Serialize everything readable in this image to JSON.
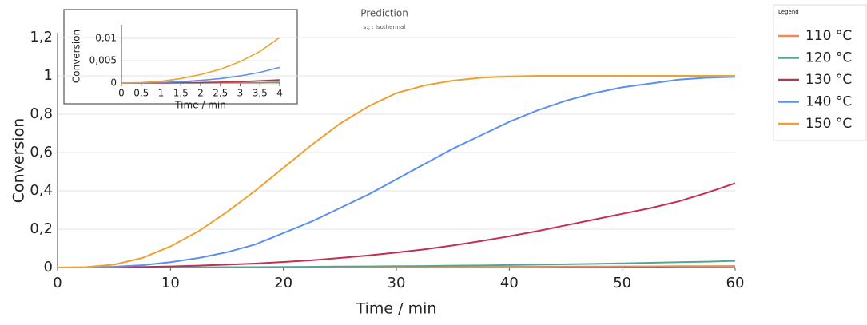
{
  "chart_data": [
    {
      "type": "line",
      "title": "Prediction",
      "subtitle": "s:; : Isothermal",
      "legend_title": "Legend",
      "xlabel": "Time / min",
      "ylabel": "Conversion",
      "x": [
        0,
        2.5,
        5,
        7.5,
        10,
        12.5,
        15,
        17.5,
        20,
        22.5,
        25,
        27.5,
        30,
        32.5,
        35,
        37.5,
        40,
        42.5,
        45,
        47.5,
        50,
        52.5,
        55,
        57.5,
        60
      ],
      "series": [
        {
          "name": "110 °C",
          "color": "#f08a55",
          "values": [
            0,
            0,
            0,
            0,
            0,
            0,
            0.001,
            0.001,
            0.001,
            0.001,
            0.002,
            0.002,
            0.002,
            0.003,
            0.003,
            0.003,
            0.004,
            0.004,
            0.005,
            0.005,
            0.006,
            0.006,
            0.007,
            0.007,
            0.008
          ]
        },
        {
          "name": "120 °C",
          "color": "#4fa897",
          "values": [
            0,
            0,
            0,
            0,
            0.001,
            0.001,
            0.002,
            0.002,
            0.003,
            0.004,
            0.005,
            0.006,
            0.007,
            0.008,
            0.01,
            0.011,
            0.013,
            0.015,
            0.017,
            0.019,
            0.022,
            0.025,
            0.028,
            0.031,
            0.035
          ]
        },
        {
          "name": "130 °C",
          "color": "#c2304f",
          "values": [
            0,
            0,
            0.001,
            0.003,
            0.006,
            0.01,
            0.015,
            0.021,
            0.029,
            0.038,
            0.05,
            0.063,
            0.078,
            0.095,
            0.115,
            0.138,
            0.163,
            0.19,
            0.22,
            0.25,
            0.28,
            0.31,
            0.345,
            0.39,
            0.44
          ]
        },
        {
          "name": "140 °C",
          "color": "#5b8ff0",
          "values": [
            0,
            0.001,
            0.004,
            0.012,
            0.028,
            0.05,
            0.08,
            0.12,
            0.18,
            0.24,
            0.31,
            0.38,
            0.46,
            0.54,
            0.62,
            0.69,
            0.76,
            0.82,
            0.87,
            0.91,
            0.94,
            0.96,
            0.98,
            0.99,
            0.995
          ]
        },
        {
          "name": "150 °C",
          "color": "#f0a030",
          "values": [
            0,
            0.002,
            0.015,
            0.05,
            0.11,
            0.19,
            0.29,
            0.4,
            0.52,
            0.64,
            0.75,
            0.84,
            0.91,
            0.95,
            0.975,
            0.99,
            0.997,
            1,
            1,
            1,
            1,
            1,
            1,
            1,
            1
          ]
        }
      ],
      "xlim": [
        0,
        60
      ],
      "xticks": [
        0,
        10,
        20,
        30,
        40,
        50,
        60
      ],
      "ylim": [
        0,
        1.2
      ],
      "yticks": [
        0,
        {
          "value": 0.2,
          "label": "0,2"
        },
        {
          "value": 0.4,
          "label": "0,4"
        },
        {
          "value": 0.6,
          "label": "0,6"
        },
        {
          "value": 0.8,
          "label": "0,8"
        },
        1,
        {
          "value": 1.2,
          "label": "1,2"
        }
      ],
      "grid": true
    },
    {
      "type": "line",
      "xlabel": "Time / min",
      "ylabel": "Conversion",
      "x": [
        0,
        0.5,
        1,
        1.5,
        2,
        2.5,
        3,
        3.5,
        4
      ],
      "series": [
        {
          "color": "#f08a55",
          "values": [
            0,
            0,
            0,
            0,
            0,
            0,
            0,
            0,
            0.0001
          ]
        },
        {
          "color": "#4fa897",
          "values": [
            0,
            0,
            0,
            0,
            0,
            0.0001,
            0.0001,
            0.0001,
            0.0002
          ]
        },
        {
          "color": "#c2304f",
          "values": [
            0,
            0,
            0,
            0.0001,
            0.0001,
            0.0002,
            0.0003,
            0.0005,
            0.0007
          ]
        },
        {
          "color": "#5b8ff0",
          "values": [
            0,
            0,
            0.0001,
            0.0003,
            0.0006,
            0.001,
            0.0016,
            0.0024,
            0.0035
          ]
        },
        {
          "color": "#f0a030",
          "values": [
            0,
            0.0001,
            0.0004,
            0.001,
            0.0019,
            0.0031,
            0.0048,
            0.0071,
            0.0102
          ]
        }
      ],
      "xlim": [
        0,
        4
      ],
      "xticks": [
        0,
        {
          "value": 0.5,
          "label": "0,5"
        },
        1,
        {
          "value": 1.5,
          "label": "1,5"
        },
        2,
        {
          "value": 2.5,
          "label": "2,5"
        },
        3,
        {
          "value": 3.5,
          "label": "3,5"
        },
        4
      ],
      "ylim": [
        0,
        0.012
      ],
      "yticks": [
        0,
        {
          "value": 0.005,
          "label": "0,005"
        },
        {
          "value": 0.01,
          "label": "0,01"
        }
      ],
      "grid": true
    }
  ]
}
